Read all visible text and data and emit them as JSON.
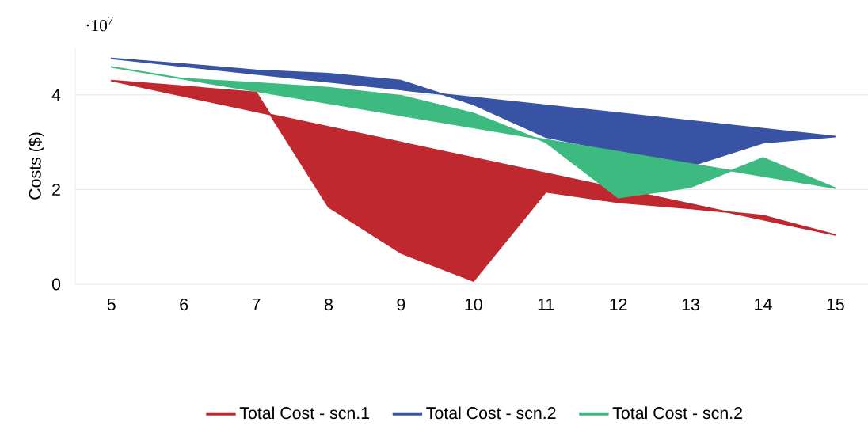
{
  "chart_data": {
    "type": "area",
    "ylabel": "Costs ($)",
    "annotations": [
      "·10$^{7}$"
    ],
    "x": [
      5,
      6,
      7,
      8,
      9,
      10,
      11,
      12,
      13,
      14,
      15
    ],
    "series": [
      {
        "name": "Total Cost - scn.1",
        "color": "#c0282f",
        "values": [
          4.3,
          4.18,
          4.05,
          1.63,
          0.66,
          0.07,
          1.95,
          1.73,
          1.6,
          1.45,
          1.04
        ]
      },
      {
        "name": "Total Cost - scn.2",
        "color": "#3953a4",
        "values": [
          4.77,
          4.65,
          4.52,
          4.45,
          4.3,
          3.8,
          3.11,
          2.8,
          2.5,
          2.99,
          3.12
        ]
      },
      {
        "name": "Total Cost - scn.2",
        "color": "#3dba80",
        "values": [
          4.59,
          4.34,
          4.25,
          4.15,
          3.98,
          3.61,
          3.0,
          1.83,
          2.05,
          2.67,
          2.03
        ]
      }
    ],
    "xlim": [
      4.5,
      15.45
    ],
    "ylim": [
      0,
      5
    ],
    "xticks": [
      5,
      6,
      7,
      8,
      9,
      10,
      11,
      12,
      13,
      14,
      15
    ],
    "yticks": [
      0,
      2,
      4
    ],
    "grid": "y",
    "legend": "bottom"
  }
}
